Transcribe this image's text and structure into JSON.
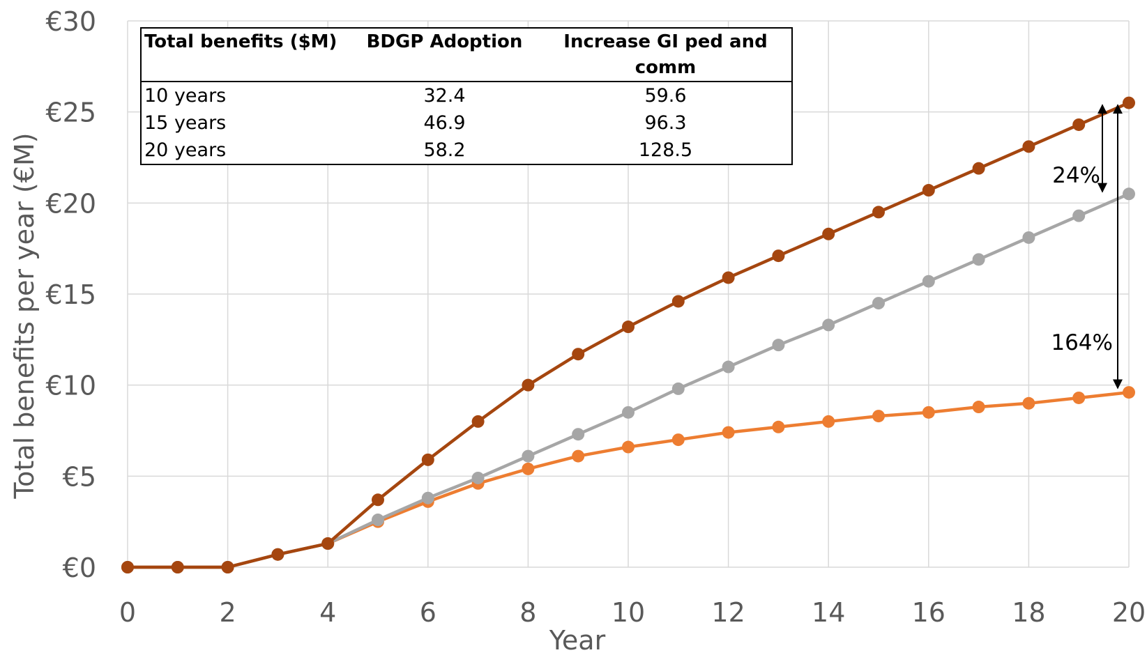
{
  "chart_data": {
    "type": "line",
    "xlabel": "Year",
    "ylabel": "Total benefits per year (€M)",
    "xlim": [
      0,
      20
    ],
    "ylim": [
      0,
      30
    ],
    "x_ticks": [
      "0",
      "2",
      "4",
      "6",
      "8",
      "10",
      "12",
      "14",
      "16",
      "18",
      "20"
    ],
    "y_ticks": [
      "€0",
      "€5",
      "€10",
      "€15",
      "€20",
      "€25",
      "€30"
    ],
    "grid": true,
    "legend": "none",
    "x": [
      0,
      1,
      2,
      3,
      4,
      5,
      6,
      7,
      8,
      9,
      10,
      11,
      12,
      13,
      14,
      15,
      16,
      17,
      18,
      19,
      20
    ],
    "series": [
      {
        "color": "#A5460F",
        "values": [
          0,
          0,
          0,
          0.7,
          1.3,
          3.7,
          5.9,
          8.0,
          10.0,
          11.7,
          13.2,
          14.6,
          15.9,
          17.1,
          18.3,
          19.5,
          20.7,
          21.9,
          23.1,
          24.3,
          25.5
        ]
      },
      {
        "color": "#A6A6A6",
        "values": [
          0,
          0,
          0,
          0.7,
          1.3,
          2.6,
          3.8,
          4.9,
          6.1,
          7.3,
          8.5,
          9.8,
          11.0,
          12.2,
          13.3,
          14.5,
          15.7,
          16.9,
          18.1,
          19.3,
          20.5
        ]
      },
      {
        "color": "#ED7D31",
        "values": [
          0,
          0,
          0,
          0.7,
          1.3,
          2.5,
          3.6,
          4.6,
          5.4,
          6.1,
          6.6,
          7.0,
          7.4,
          7.7,
          8.0,
          8.3,
          8.5,
          8.8,
          9.0,
          9.3,
          9.6
        ]
      }
    ],
    "annotations": [
      {
        "text": "24%",
        "from": 25.5,
        "to": 20.5
      },
      {
        "text": "164%",
        "from": 25.5,
        "to": 9.6
      }
    ]
  },
  "table": {
    "headers": [
      "Total benefits ($M)",
      "BDGP Adoption",
      "Increase GI ped and comm"
    ],
    "rows": [
      [
        "10 years",
        "32.4",
        "59.6"
      ],
      [
        "15 years",
        "46.9",
        "96.3"
      ],
      [
        "20 years",
        "58.2",
        "128.5"
      ]
    ]
  }
}
